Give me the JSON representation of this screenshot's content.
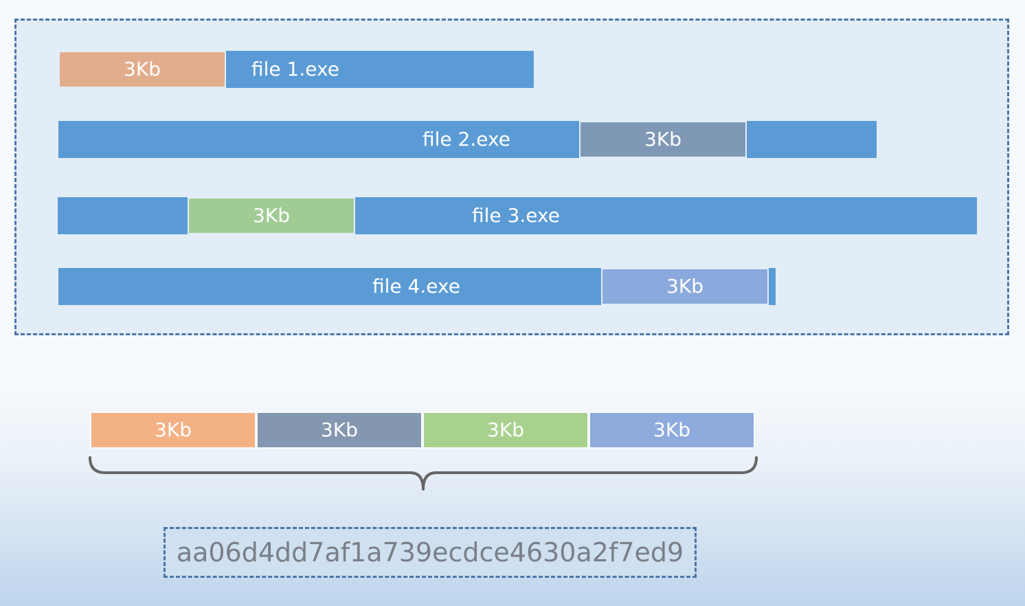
{
  "files": [
    {
      "name": "file 1.exe",
      "chunk_label": "3Kb",
      "chunk_color": "#e2ad8c"
    },
    {
      "name": "file 2.exe",
      "chunk_label": "3Kb",
      "chunk_color": "#7f98b5"
    },
    {
      "name": "file 3.exe",
      "chunk_label": "3Kb",
      "chunk_color": "#a0cc94"
    },
    {
      "name": "file 4.exe",
      "chunk_label": "3Kb",
      "chunk_color": "#8aa9dc"
    }
  ],
  "combined": [
    {
      "label": "3Kb",
      "color": "#f4b183"
    },
    {
      "label": "3Kb",
      "color": "#8497b0"
    },
    {
      "label": "3Kb",
      "color": "#a9d18e"
    },
    {
      "label": "3Kb",
      "color": "#8faadc"
    }
  ],
  "hash": "aa06d4dd7af1a739ecdce4630a2f7ed9",
  "colors": {
    "file_bar": "#5b9bd5",
    "dashed_border": "#4a76a8",
    "brace": "#666666",
    "hash_text": "#7a7f88"
  }
}
